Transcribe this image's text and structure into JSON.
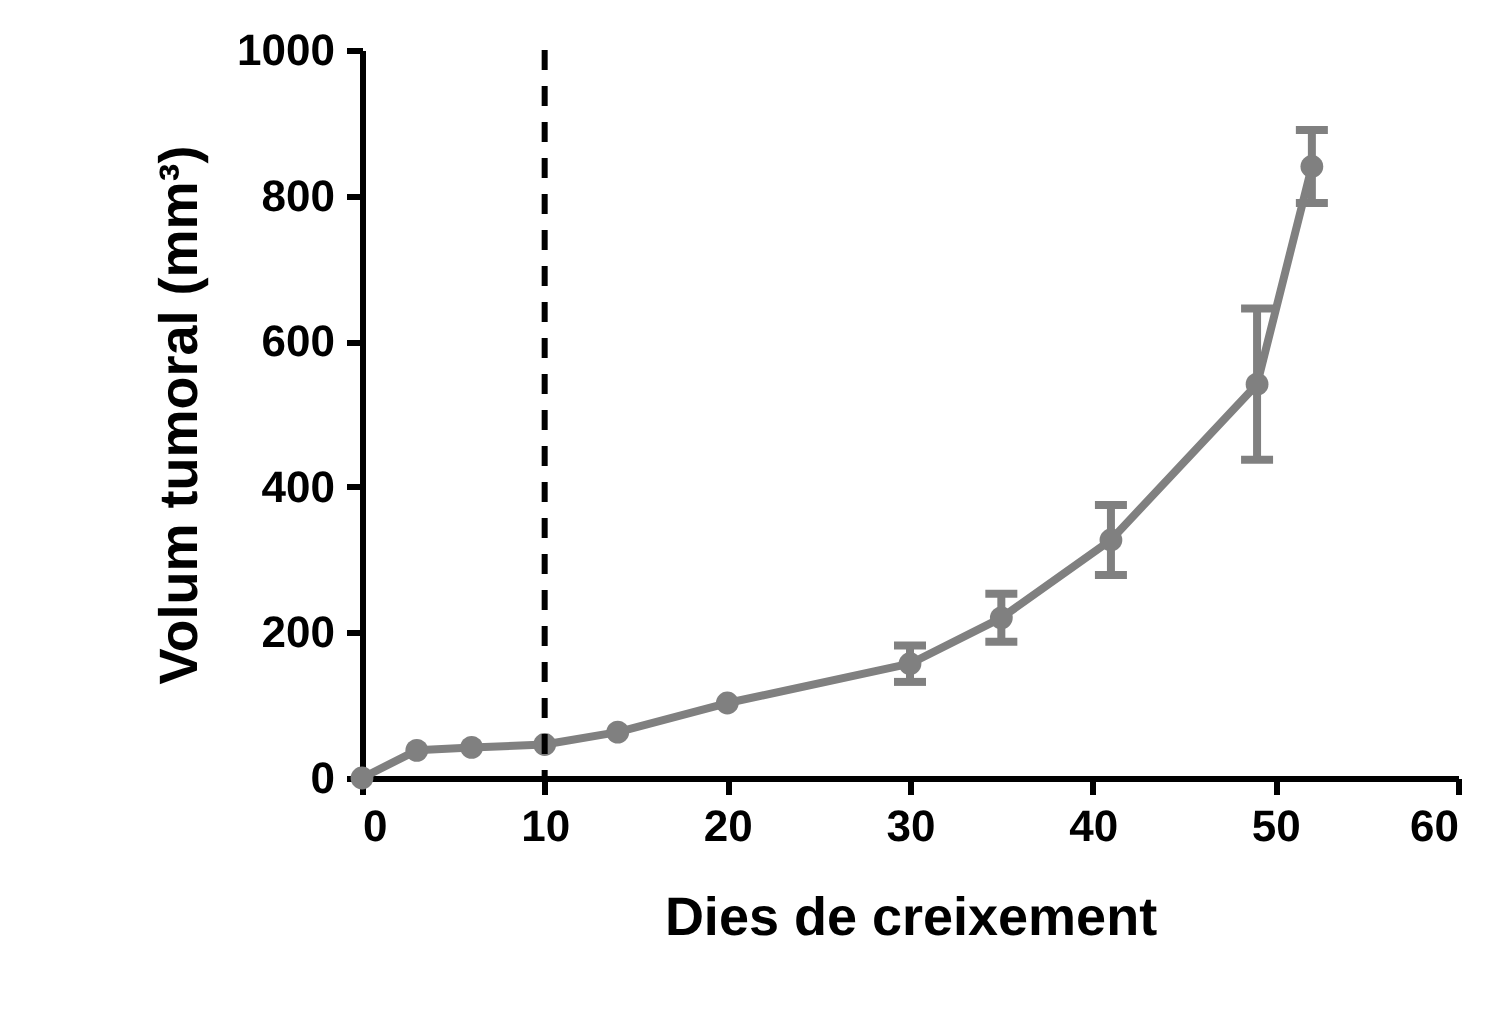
{
  "chart_data": {
    "type": "line",
    "xlabel": "Dies de creixement",
    "ylabel": "Volum tumoral (mm³)",
    "x": [
      0,
      3,
      6,
      10,
      14,
      20,
      30,
      35,
      41,
      49,
      52
    ],
    "series": [
      {
        "color": "#808080",
        "values": [
          0,
          38,
          42,
          46,
          63,
          103,
          157,
          220,
          327,
          541,
          840
        ],
        "errors": [
          null,
          null,
          null,
          null,
          null,
          null,
          25,
          33,
          48,
          104,
          50
        ]
      }
    ],
    "xlim": [
      0,
      60
    ],
    "xticks": [
      0,
      10,
      20,
      30,
      40,
      50,
      60
    ],
    "ylim": [
      0,
      1000
    ],
    "yticks": [
      0,
      200,
      400,
      600,
      800,
      1000
    ],
    "ref_lines": [
      {
        "axis": "x",
        "value": 10,
        "color": "#000000",
        "line_style": "dashed"
      }
    ],
    "grid": false,
    "marker": "circle",
    "line_style": "solid"
  }
}
